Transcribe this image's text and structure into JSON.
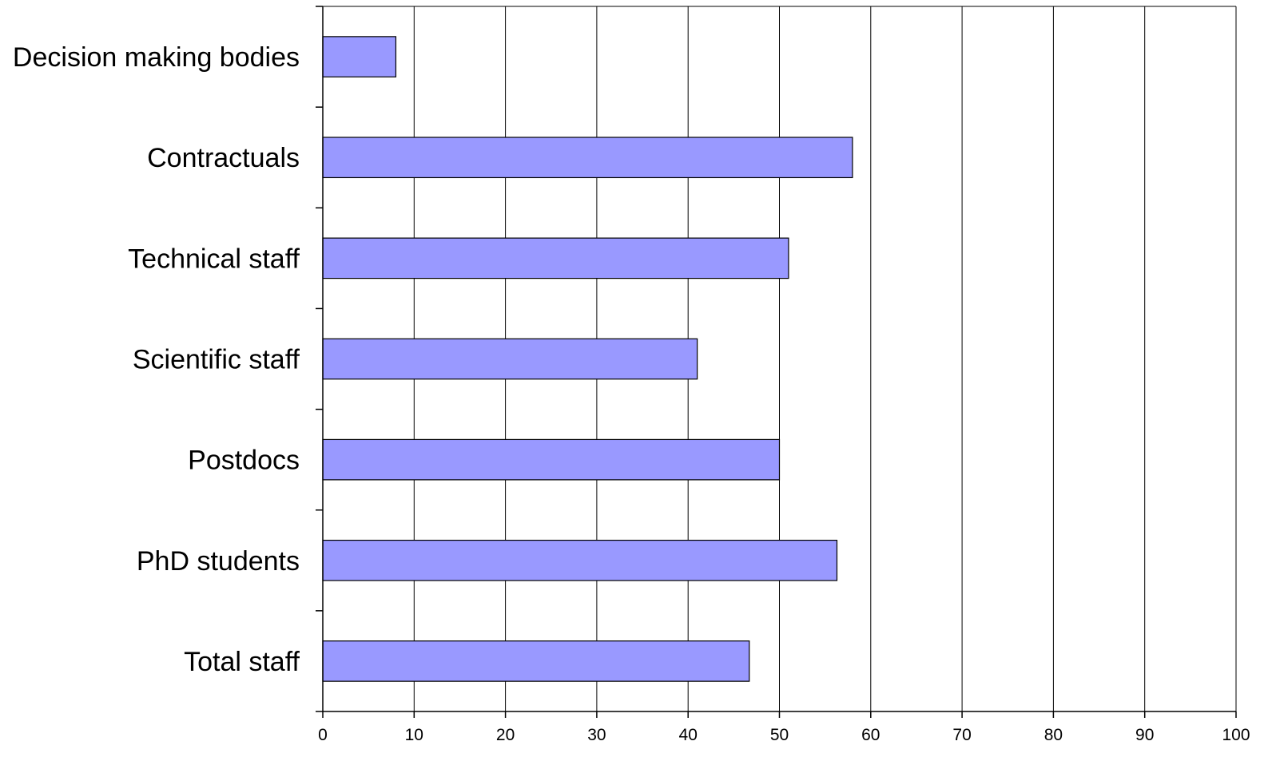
{
  "chart_data": {
    "type": "bar",
    "orientation": "horizontal",
    "categories": [
      "Decision making bodies",
      "Contractuals",
      "Technical staff",
      "Scientific staff",
      "Postdocs",
      "PhD students",
      "Total staff"
    ],
    "values": [
      8,
      58,
      51,
      41,
      50,
      56.3,
      46.7
    ],
    "xlim": [
      0,
      100
    ],
    "xticks": [
      "0",
      "10",
      "20",
      "30",
      "40",
      "50",
      "60",
      "70",
      "80",
      "90",
      "100"
    ],
    "title": "",
    "xlabel": "",
    "ylabel": "",
    "grid": "vertical",
    "legend": "none",
    "bar_color": "#9999ff",
    "bar_edge_color": "#000000",
    "grid_color": "#000000"
  }
}
